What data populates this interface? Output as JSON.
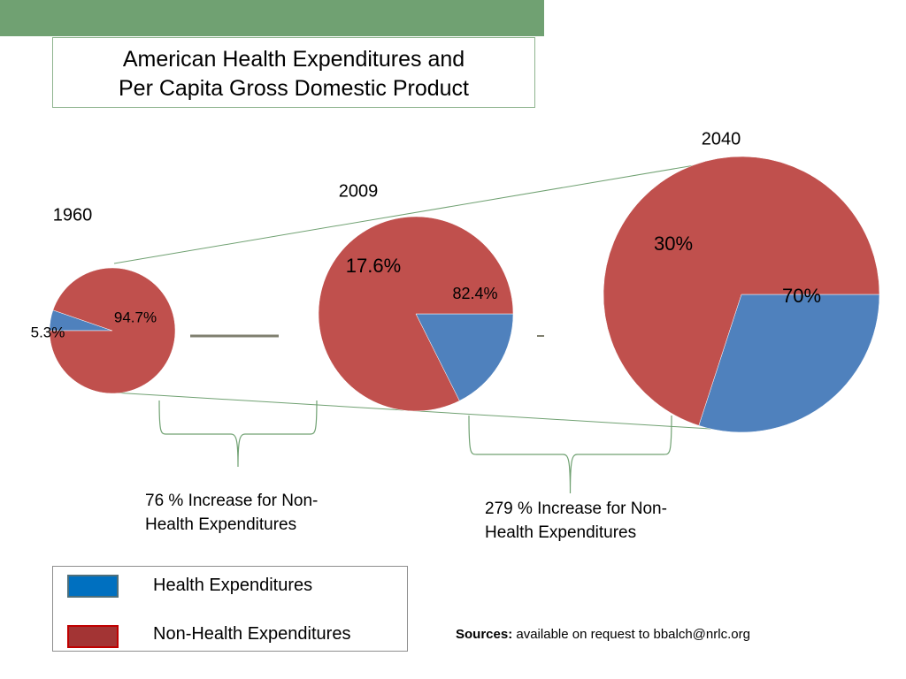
{
  "header": {
    "bar_color": "#70a172"
  },
  "title": {
    "line1": "American Health Expenditures and",
    "line2": "Per Capita Gross Domestic Product"
  },
  "colors": {
    "health": "#4f81bd",
    "non_health": "#c0504d",
    "legend_health_fill": "#0070c0",
    "legend_health_border": "#4f6f7a",
    "legend_non_health_fill": "#a33434",
    "legend_non_health_border": "#c00000",
    "connector": "#70a172",
    "bracket": "#70a172",
    "dash": "#7f7f6f"
  },
  "chart_data": [
    {
      "type": "pie",
      "title": "1960",
      "categories": [
        "Health Expenditures",
        "Non-Health Expenditures"
      ],
      "values": [
        5.3,
        94.7
      ],
      "labels": [
        "5.3%",
        "94.7%"
      ]
    },
    {
      "type": "pie",
      "title": "2009",
      "categories": [
        "Health Expenditures",
        "Non-Health Expenditures"
      ],
      "values": [
        17.6,
        82.4
      ],
      "labels": [
        "17.6%",
        "82.4%"
      ]
    },
    {
      "type": "pie",
      "title": "2040",
      "categories": [
        "Health Expenditures",
        "Non-Health Expenditures"
      ],
      "values": [
        30,
        70
      ],
      "labels": [
        "30%",
        "70%"
      ]
    }
  ],
  "captions": {
    "first": {
      "line1": "76 % Increase for Non-",
      "line2": "Health Expenditures"
    },
    "second": {
      "line1": "279 % Increase for Non-",
      "line2": "Health Expenditures"
    }
  },
  "legend": {
    "items": [
      {
        "label": "Health Expenditures"
      },
      {
        "label": "Non-Health Expenditures"
      }
    ]
  },
  "sources": {
    "label": "Sources:",
    "text": " available on request to bbalch@nrlc.org"
  }
}
